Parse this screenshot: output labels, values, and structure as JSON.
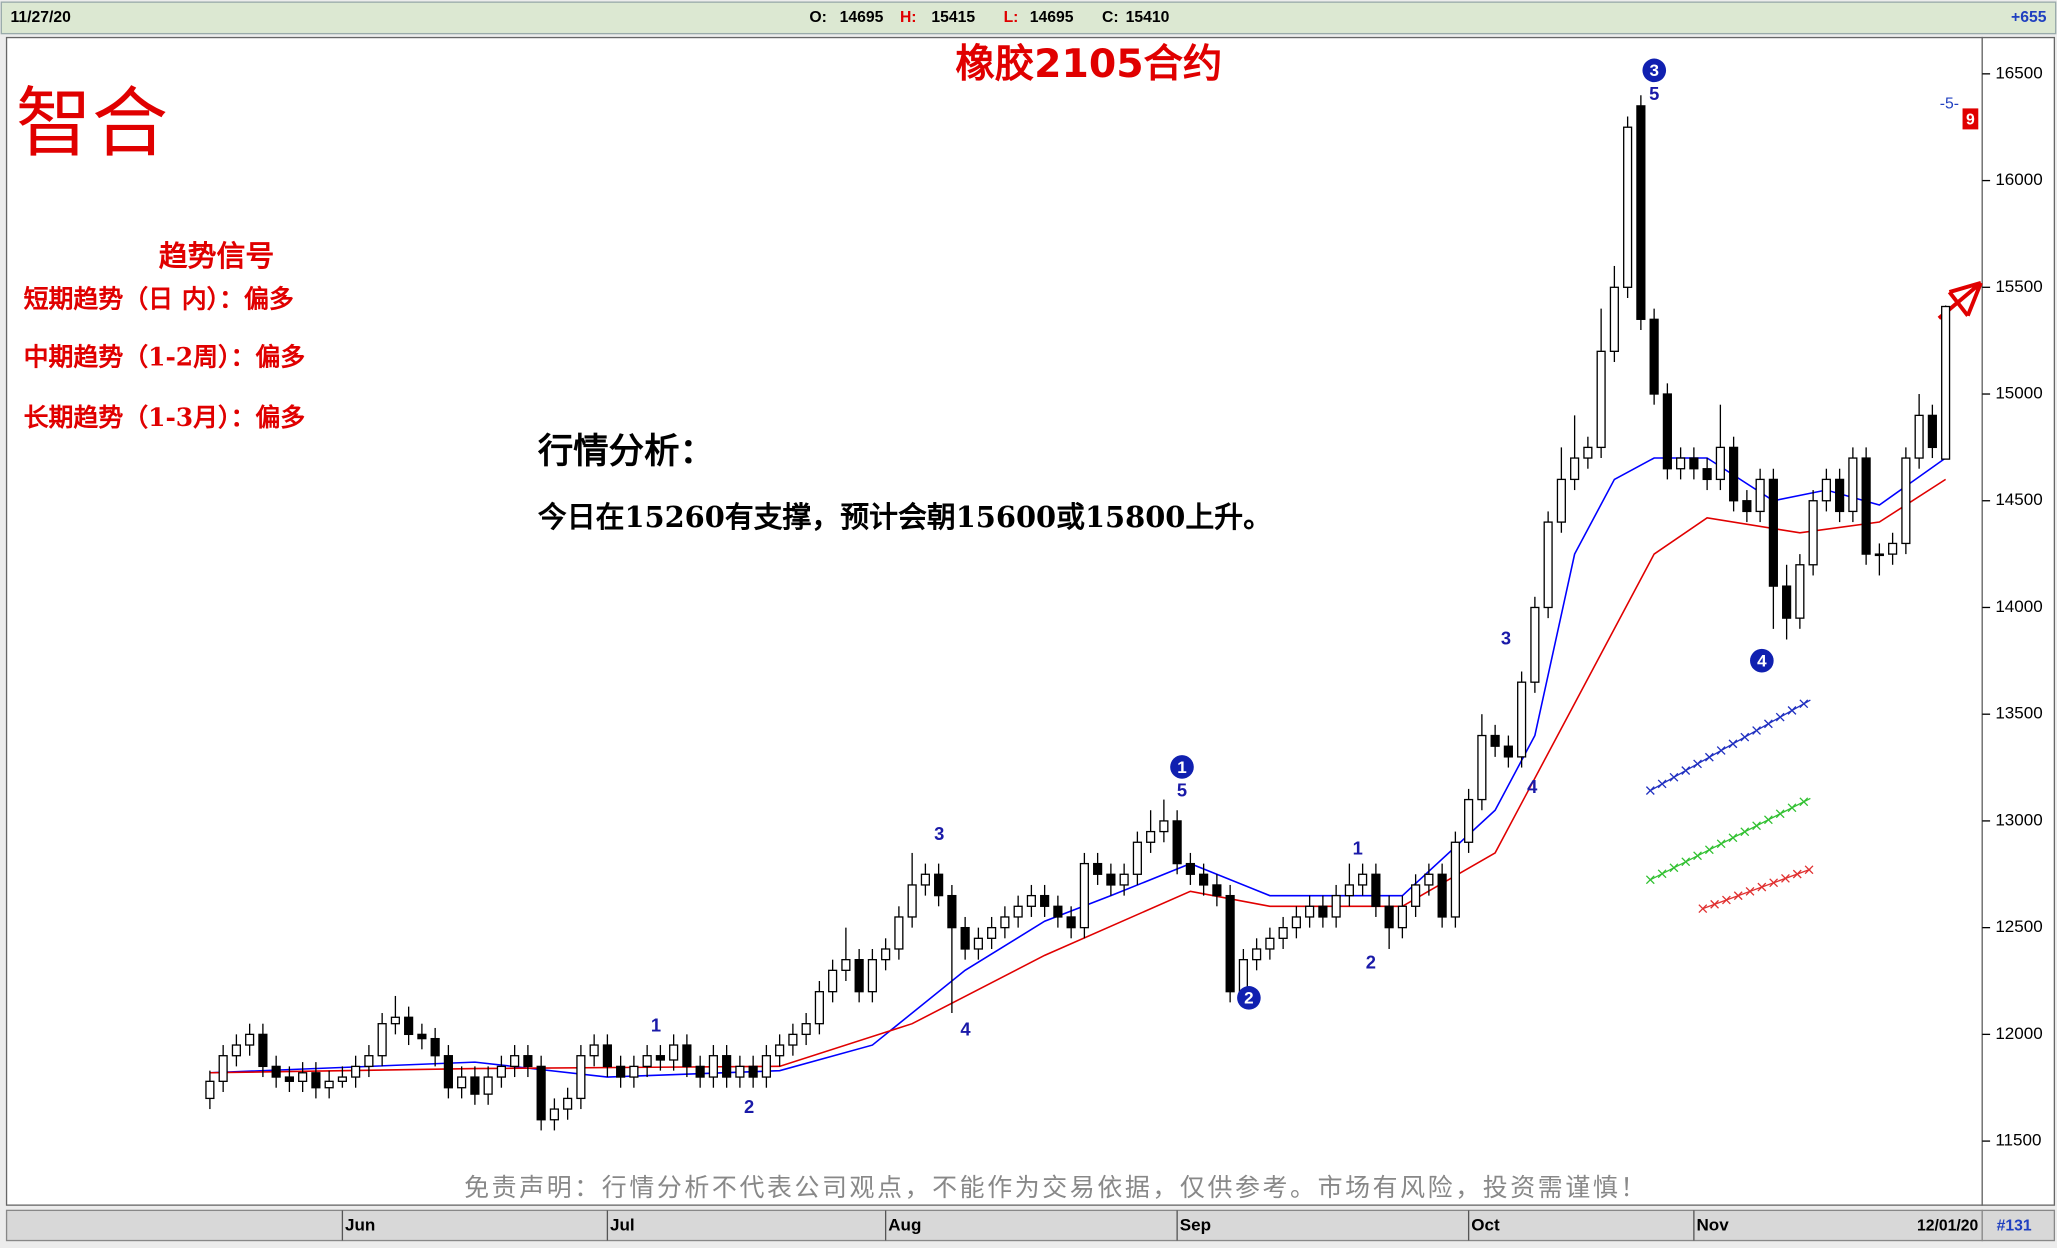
{
  "header": {
    "date": "11/27/20",
    "open": {
      "label": "O:",
      "value": 14695
    },
    "high": {
      "label": "H:",
      "value": 15415
    },
    "low": {
      "label": "L:",
      "value": 14695
    },
    "close": {
      "label": "C:",
      "value": 15410
    },
    "change": "+655"
  },
  "footer": {
    "date": "12/01/20",
    "count": "#131"
  },
  "logo": "智合",
  "signals": {
    "title": "趋势信号",
    "lines": [
      "短期趋势（日 内）：偏多",
      "中期趋势（1-2周）：偏多",
      "长期趋势（1-3月）：偏多"
    ]
  },
  "analysis": {
    "title": "行情分析：",
    "body": "今日在15260有支撑，预计会朝15600或15800上升。"
  },
  "disclaimer": "免责声明：行情分析不代表公司观点，不能作为交易依据，仅供参考。市场有风险，投资需谨慎！",
  "chart_data": {
    "type": "candlestick",
    "title": "橡胶2105合约",
    "ylim": [
      11200,
      16670
    ],
    "yticks": [
      11500,
      12000,
      12500,
      13000,
      13500,
      14000,
      14500,
      15000,
      15500,
      16000,
      16500
    ],
    "xticks": [
      {
        "value": 10,
        "label": "Jun"
      },
      {
        "value": 30,
        "label": "Jul"
      },
      {
        "value": 51,
        "label": "Aug"
      },
      {
        "value": 73,
        "label": "Sep"
      },
      {
        "value": 95,
        "label": "Oct"
      },
      {
        "value": 112,
        "label": "Nov"
      }
    ],
    "up_color": "#ffffff",
    "down_color": "#000000",
    "candles": [
      [
        11700,
        11830,
        11650,
        11780
      ],
      [
        11780,
        11950,
        11730,
        11900
      ],
      [
        11900,
        12000,
        11850,
        11950
      ],
      [
        11950,
        12050,
        11900,
        12000
      ],
      [
        12000,
        12050,
        11800,
        11850
      ],
      [
        11850,
        11900,
        11750,
        11800
      ],
      [
        11800,
        11850,
        11730,
        11780
      ],
      [
        11780,
        11870,
        11730,
        11820
      ],
      [
        11820,
        11870,
        11700,
        11750
      ],
      [
        11750,
        11830,
        11700,
        11780
      ],
      [
        11780,
        11850,
        11750,
        11800
      ],
      [
        11800,
        11900,
        11750,
        11850
      ],
      [
        11850,
        11950,
        11800,
        11900
      ],
      [
        11900,
        12100,
        11850,
        12050
      ],
      [
        12050,
        12180,
        12000,
        12080
      ],
      [
        12080,
        12130,
        11950,
        12000
      ],
      [
        12000,
        12050,
        11930,
        11980
      ],
      [
        11980,
        12030,
        11850,
        11900
      ],
      [
        11900,
        11950,
        11700,
        11750
      ],
      [
        11750,
        11850,
        11700,
        11800
      ],
      [
        11800,
        11850,
        11670,
        11720
      ],
      [
        11720,
        11850,
        11670,
        11800
      ],
      [
        11800,
        11900,
        11750,
        11850
      ],
      [
        11850,
        11950,
        11800,
        11900
      ],
      [
        11900,
        11950,
        11800,
        11850
      ],
      [
        11850,
        11900,
        11550,
        11600
      ],
      [
        11600,
        11700,
        11550,
        11650
      ],
      [
        11650,
        11750,
        11600,
        11700
      ],
      [
        11700,
        11950,
        11650,
        11900
      ],
      [
        11900,
        12000,
        11850,
        11950
      ],
      [
        11950,
        12000,
        11800,
        11850
      ],
      [
        11850,
        11900,
        11750,
        11800
      ],
      [
        11800,
        11900,
        11750,
        11850
      ],
      [
        11850,
        11950,
        11800,
        11900
      ],
      [
        11900,
        11950,
        11830,
        11880
      ],
      [
        11880,
        12000,
        11830,
        11950
      ],
      [
        11950,
        12000,
        11800,
        11850
      ],
      [
        11850,
        11900,
        11750,
        11800
      ],
      [
        11800,
        11950,
        11750,
        11900
      ],
      [
        11900,
        11950,
        11750,
        11800
      ],
      [
        11800,
        11900,
        11750,
        11850
      ],
      [
        11850,
        11900,
        11750,
        11800
      ],
      [
        11800,
        11950,
        11750,
        11900
      ],
      [
        11900,
        12000,
        11850,
        11950
      ],
      [
        11950,
        12050,
        11900,
        12000
      ],
      [
        12000,
        12100,
        11950,
        12050
      ],
      [
        12050,
        12250,
        12000,
        12200
      ],
      [
        12200,
        12350,
        12150,
        12300
      ],
      [
        12300,
        12500,
        12250,
        12350
      ],
      [
        12350,
        12400,
        12150,
        12200
      ],
      [
        12200,
        12400,
        12150,
        12350
      ],
      [
        12350,
        12450,
        12300,
        12400
      ],
      [
        12400,
        12600,
        12350,
        12550
      ],
      [
        12550,
        12850,
        12500,
        12700
      ],
      [
        12700,
        12800,
        12650,
        12750
      ],
      [
        12750,
        12800,
        12600,
        12650
      ],
      [
        12650,
        12700,
        12100,
        12500
      ],
      [
        12500,
        12550,
        12350,
        12400
      ],
      [
        12400,
        12500,
        12350,
        12450
      ],
      [
        12450,
        12550,
        12400,
        12500
      ],
      [
        12500,
        12600,
        12450,
        12550
      ],
      [
        12550,
        12650,
        12500,
        12600
      ],
      [
        12600,
        12700,
        12550,
        12650
      ],
      [
        12650,
        12700,
        12550,
        12600
      ],
      [
        12600,
        12650,
        12500,
        12550
      ],
      [
        12550,
        12600,
        12450,
        12500
      ],
      [
        12500,
        12850,
        12450,
        12800
      ],
      [
        12800,
        12850,
        12700,
        12750
      ],
      [
        12750,
        12800,
        12650,
        12700
      ],
      [
        12700,
        12800,
        12650,
        12750
      ],
      [
        12750,
        12950,
        12700,
        12900
      ],
      [
        12900,
        13050,
        12850,
        12950
      ],
      [
        12950,
        13100,
        12900,
        13000
      ],
      [
        13000,
        13050,
        12750,
        12800
      ],
      [
        12800,
        12850,
        12700,
        12750
      ],
      [
        12750,
        12800,
        12650,
        12700
      ],
      [
        12700,
        12750,
        12600,
        12650
      ],
      [
        12650,
        12700,
        12150,
        12200
      ],
      [
        12200,
        12400,
        12150,
        12350
      ],
      [
        12350,
        12450,
        12300,
        12400
      ],
      [
        12400,
        12500,
        12350,
        12450
      ],
      [
        12450,
        12550,
        12400,
        12500
      ],
      [
        12500,
        12600,
        12450,
        12550
      ],
      [
        12550,
        12650,
        12500,
        12600
      ],
      [
        12600,
        12650,
        12500,
        12550
      ],
      [
        12550,
        12700,
        12500,
        12650
      ],
      [
        12650,
        12800,
        12600,
        12700
      ],
      [
        12700,
        12800,
        12650,
        12750
      ],
      [
        12750,
        12800,
        12550,
        12600
      ],
      [
        12600,
        12650,
        12400,
        12500
      ],
      [
        12500,
        12650,
        12450,
        12600
      ],
      [
        12600,
        12750,
        12550,
        12700
      ],
      [
        12700,
        12800,
        12650,
        12750
      ],
      [
        12750,
        12800,
        12500,
        12550
      ],
      [
        12550,
        12950,
        12500,
        12900
      ],
      [
        12900,
        13150,
        12850,
        13100
      ],
      [
        13100,
        13500,
        13050,
        13400
      ],
      [
        13400,
        13450,
        13300,
        13350
      ],
      [
        13350,
        13400,
        13250,
        13300
      ],
      [
        13300,
        13700,
        13250,
        13650
      ],
      [
        13650,
        14050,
        13600,
        14000
      ],
      [
        14000,
        14450,
        13950,
        14400
      ],
      [
        14400,
        14750,
        14350,
        14600
      ],
      [
        14600,
        14900,
        14550,
        14700
      ],
      [
        14700,
        14800,
        14650,
        14750
      ],
      [
        14750,
        15400,
        14700,
        15200
      ],
      [
        15200,
        15600,
        15150,
        15500
      ],
      [
        15500,
        16300,
        15450,
        16250
      ],
      [
        16350,
        16400,
        15300,
        15350
      ],
      [
        15350,
        15400,
        14950,
        15000
      ],
      [
        15000,
        15050,
        14600,
        14650
      ],
      [
        14650,
        14750,
        14600,
        14700
      ],
      [
        14700,
        14750,
        14600,
        14650
      ],
      [
        14650,
        14700,
        14550,
        14600
      ],
      [
        14600,
        14950,
        14550,
        14750
      ],
      [
        14750,
        14800,
        14450,
        14500
      ],
      [
        14500,
        14550,
        14400,
        14450
      ],
      [
        14450,
        14650,
        14400,
        14600
      ],
      [
        14600,
        14650,
        13900,
        14100
      ],
      [
        14100,
        14200,
        13850,
        13950
      ],
      [
        13950,
        14250,
        13900,
        14200
      ],
      [
        14200,
        14550,
        14150,
        14500
      ],
      [
        14500,
        14650,
        14450,
        14600
      ],
      [
        14600,
        14650,
        14400,
        14450
      ],
      [
        14450,
        14750,
        14400,
        14700
      ],
      [
        14700,
        14750,
        14200,
        14250
      ],
      [
        14250,
        14300,
        14150,
        14250
      ],
      [
        14250,
        14350,
        14200,
        14300
      ],
      [
        14300,
        14750,
        14250,
        14700
      ],
      [
        14700,
        15000,
        14650,
        14900
      ],
      [
        14900,
        14950,
        14700,
        14750
      ],
      [
        14695,
        15415,
        14695,
        15410
      ]
    ],
    "lines": [
      {
        "color": "#0000ff",
        "x": [
          0,
          20,
          30,
          43,
          50,
          57,
          63,
          68,
          74,
          80,
          90,
          97,
          100,
          103,
          106,
          109,
          113,
          118,
          122,
          126,
          131
        ],
        "values": [
          11820,
          11870,
          11800,
          11830,
          11950,
          12300,
          12530,
          12650,
          12800,
          12650,
          12650,
          13050,
          13400,
          14250,
          14600,
          14700,
          14700,
          14500,
          14550,
          14480,
          14700
        ]
      },
      {
        "color": "#e00000",
        "x": [
          0,
          20,
          43,
          53,
          63,
          74,
          80,
          90,
          97,
          103,
          109,
          113,
          120,
          126,
          131
        ],
        "values": [
          11820,
          11840,
          11850,
          12050,
          12370,
          12670,
          12600,
          12600,
          12850,
          13550,
          14250,
          14420,
          14350,
          14400,
          14600
        ]
      }
    ],
    "wave_labels": [
      "1",
      "2",
      "3",
      "4",
      "5",
      "1",
      "2",
      "3",
      "4",
      "5"
    ],
    "wave_circles": [
      "1",
      "2",
      "3",
      "4"
    ],
    "axis_marks": [
      "-5-",
      "9"
    ]
  }
}
